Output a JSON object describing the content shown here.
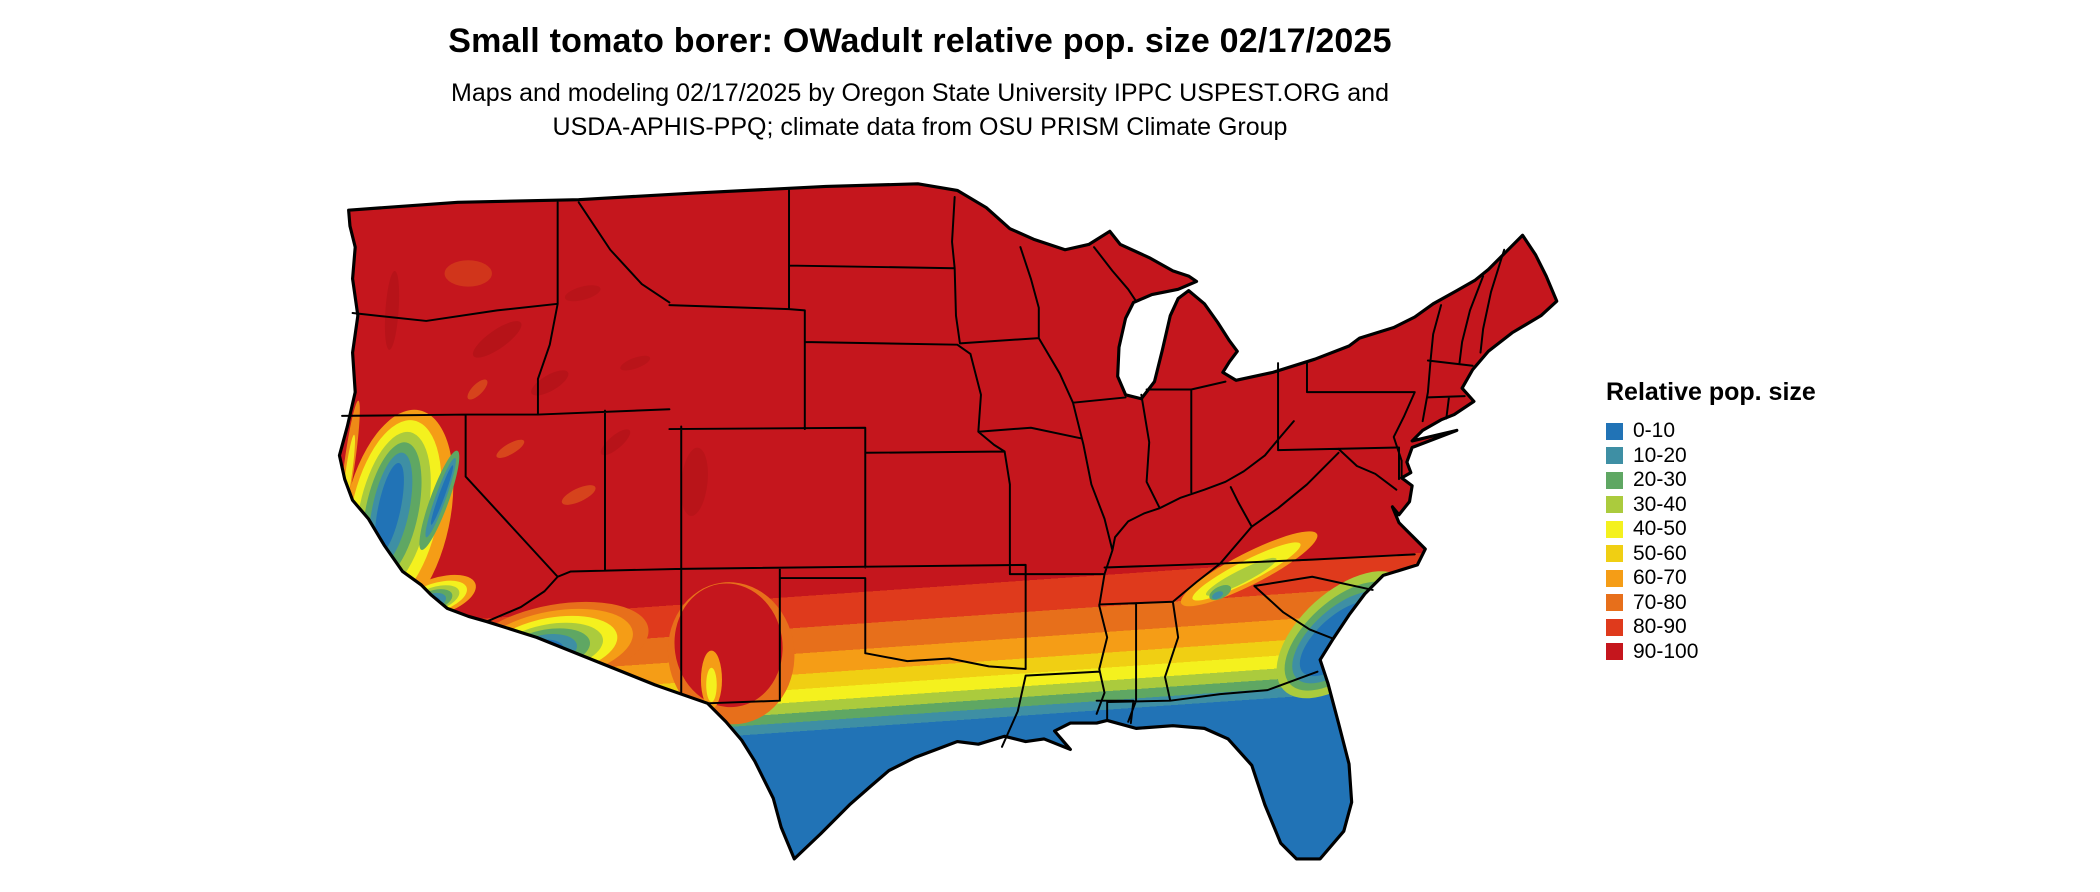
{
  "header": {
    "title": "Small tomato borer: OWadult relative pop. size 02/17/2025",
    "subtitle_line1": "Maps and modeling 02/17/2025 by Oregon State University IPPC USPEST.ORG and",
    "subtitle_line2": "USDA-APHIS-PPQ; climate data from OSU PRISM Climate Group"
  },
  "map": {
    "alt": "Choropleth map of the contiguous United States shaded by relative population size",
    "outline_color": "#000000",
    "background": "#ffffff"
  },
  "legend": {
    "title": "Relative pop. size",
    "items": [
      {
        "label": "0-10",
        "color": "#2173B6"
      },
      {
        "label": "10-20",
        "color": "#3E8FA4"
      },
      {
        "label": "20-30",
        "color": "#5FA763"
      },
      {
        "label": "30-40",
        "color": "#ABCB3D"
      },
      {
        "label": "40-50",
        "color": "#F4F11E"
      },
      {
        "label": "50-60",
        "color": "#F0CF13"
      },
      {
        "label": "60-70",
        "color": "#F59D16"
      },
      {
        "label": "70-80",
        "color": "#E76F1B"
      },
      {
        "label": "80-90",
        "color": "#DF3A1C"
      },
      {
        "label": "90-100",
        "color": "#C5161D"
      }
    ]
  }
}
